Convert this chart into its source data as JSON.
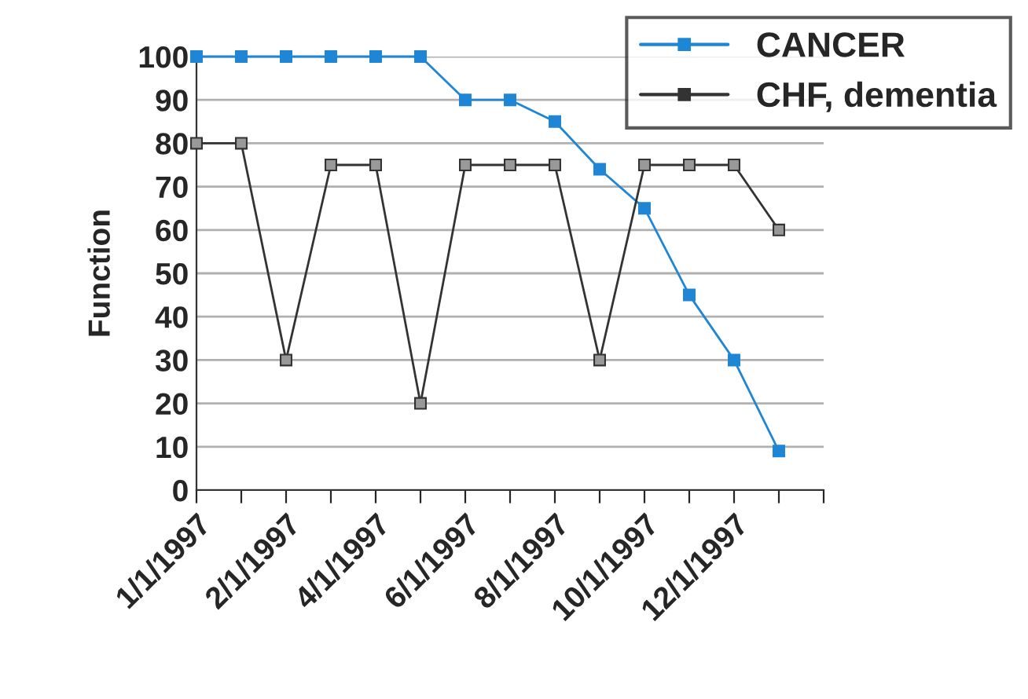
{
  "chart_data": {
    "type": "line",
    "ylabel": "Function",
    "categories": [
      "1/1/1997",
      null,
      "2/1/1997",
      null,
      "4/1/1997",
      null,
      "6/1/1997",
      null,
      "8/1/1997",
      null,
      "10/1/1997",
      null,
      "12/1/1997",
      null,
      null
    ],
    "series": [
      {
        "name": "CANCER",
        "color": "#1f86d6",
        "values": [
          100,
          100,
          100,
          100,
          100,
          100,
          90,
          90,
          85,
          74,
          65,
          45,
          30,
          9,
          null
        ]
      },
      {
        "name": "CHF, dementia",
        "color": "#333333",
        "values": [
          80,
          80,
          30,
          75,
          75,
          20,
          75,
          75,
          75,
          30,
          75,
          75,
          75,
          60,
          null
        ]
      }
    ],
    "ylim": [
      0,
      100
    ],
    "yticks": [
      0,
      10,
      20,
      30,
      40,
      50,
      60,
      70,
      80,
      90,
      100
    ],
    "grid": "y",
    "legend": "top right",
    "marker": "square",
    "line_style": "solid"
  }
}
